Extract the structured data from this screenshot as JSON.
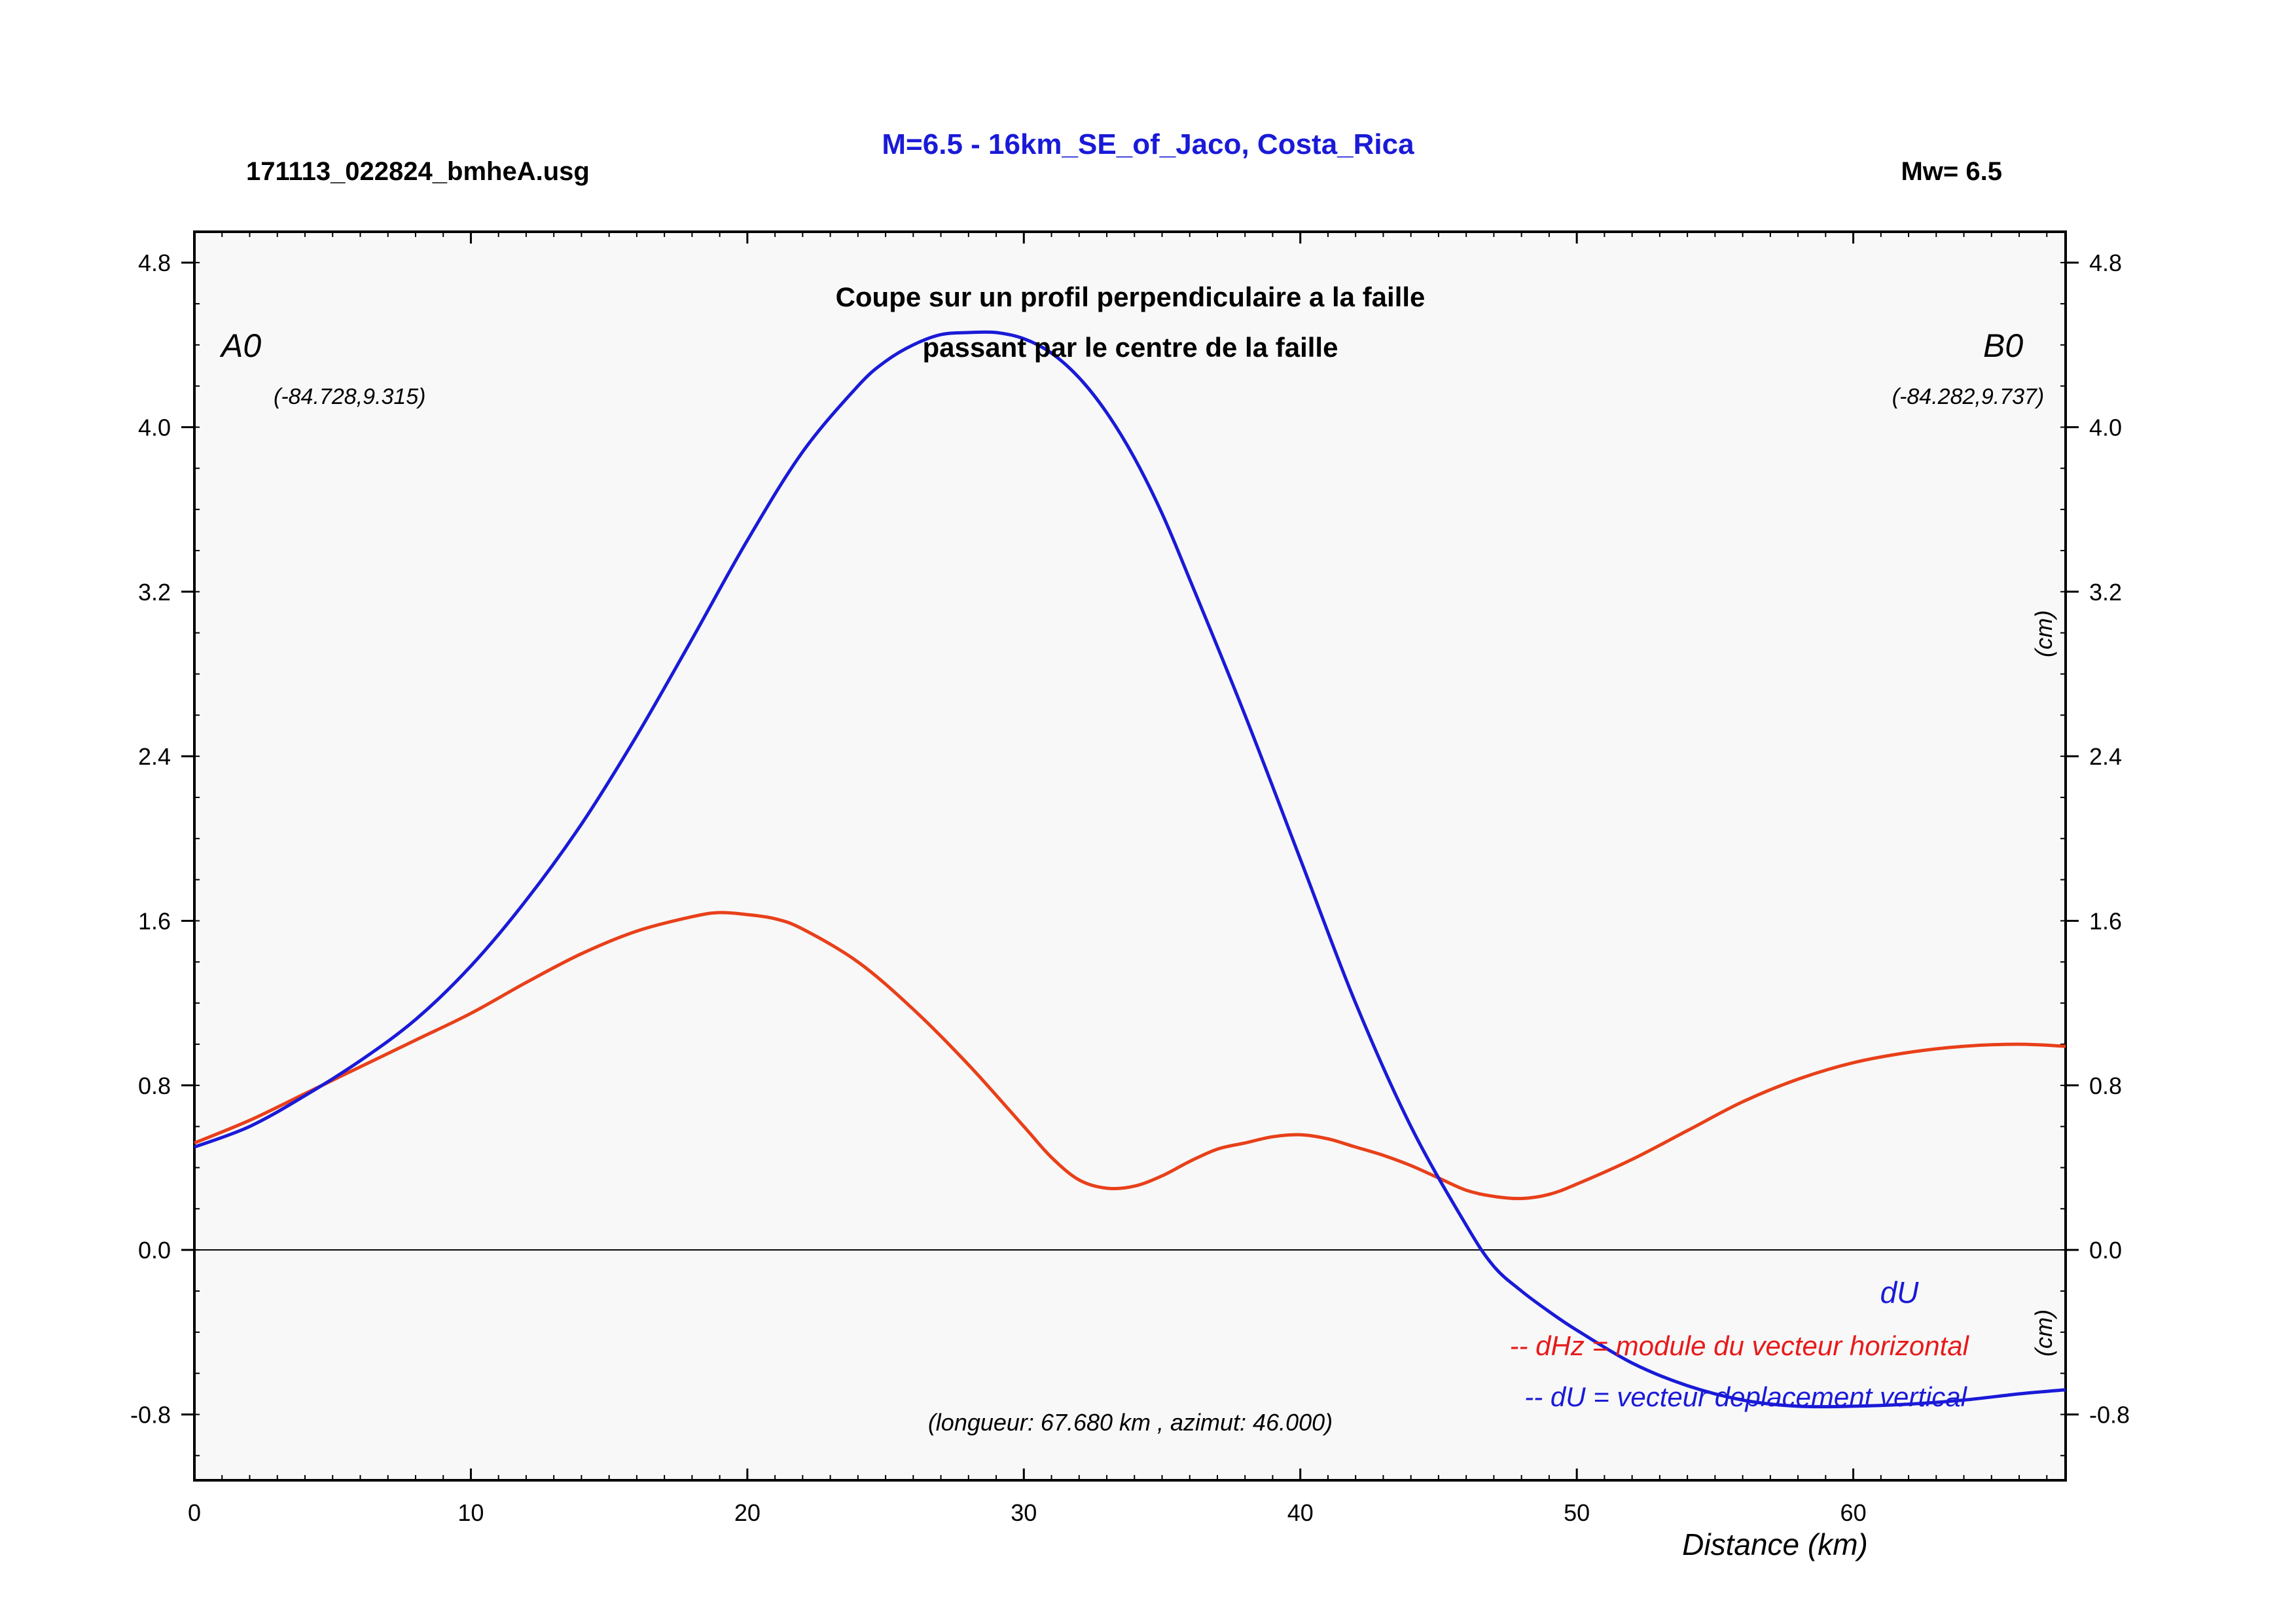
{
  "header": {
    "title": "M=6.5 - 16km_SE_of_Jaco, Costa_Rica",
    "file": "171113_022824_bmheA.usg",
    "mw": "Mw= 6.5"
  },
  "colors": {
    "dU": "#1a1ad8",
    "dHz": "#e8401a",
    "legend_dHz": "#e81a1a",
    "title": "#1a1ad8",
    "plot_bg": "#f8f8f8"
  },
  "chart_data": {
    "type": "line",
    "subtitle_lines": [
      "Coupe sur un profil perpendiculaire a la faille",
      "passant par le centre de la faille"
    ],
    "xlabel": "Distance (km)",
    "ylabel_right": "(cm)",
    "ylabel_right_lower": "(cm)",
    "xlim": [
      0,
      67.68
    ],
    "ylim": [
      -1.12,
      4.95
    ],
    "xticks": [
      0,
      10,
      20,
      30,
      40,
      50,
      60
    ],
    "yticks": [
      -0.8,
      0.0,
      0.8,
      1.6,
      2.4,
      3.2,
      4.0,
      4.8
    ],
    "grid": false,
    "zero_line": true,
    "endpoints": {
      "start_label": "A0",
      "start_coords": "(-84.728,9.315)",
      "end_label": "B0",
      "end_coords": "(-84.282,9.737)"
    },
    "profile_info": "(longueur: 67.680 km , azimut: 46.000)",
    "curve_label": "dU",
    "legend": [
      "-- dHz = module du vecteur horizontal",
      "-- dU =  vecteur deplacement vertical"
    ],
    "series": [
      {
        "key": "dU",
        "x": [
          0,
          2,
          4,
          6,
          8,
          10,
          12,
          14,
          16,
          18,
          20,
          22,
          24,
          25,
          26,
          27,
          28,
          29,
          30,
          31,
          32,
          33,
          34,
          35,
          36,
          38,
          40,
          42,
          44,
          46,
          47,
          48,
          49,
          50,
          52,
          54,
          56,
          58,
          60,
          62,
          64,
          66,
          67.68
        ],
        "y": [
          0.5,
          0.6,
          0.75,
          0.92,
          1.12,
          1.38,
          1.7,
          2.07,
          2.5,
          2.97,
          3.45,
          3.88,
          4.2,
          4.32,
          4.4,
          4.45,
          4.46,
          4.46,
          4.43,
          4.36,
          4.24,
          4.07,
          3.85,
          3.58,
          3.26,
          2.6,
          1.9,
          1.2,
          0.6,
          0.12,
          -0.08,
          -0.2,
          -0.3,
          -0.39,
          -0.55,
          -0.66,
          -0.73,
          -0.76,
          -0.76,
          -0.75,
          -0.73,
          -0.7,
          -0.68
        ]
      },
      {
        "key": "dHz",
        "x": [
          0,
          2,
          4,
          6,
          8,
          10,
          12,
          14,
          16,
          18,
          19,
          20,
          21,
          22,
          24,
          26,
          28,
          30,
          31,
          32,
          33,
          34,
          35,
          36,
          37,
          38,
          39,
          40,
          41,
          42,
          43,
          44,
          45,
          46,
          47,
          48,
          49,
          50,
          52,
          54,
          56,
          58,
          60,
          62,
          64,
          66,
          67.68
        ],
        "y": [
          0.52,
          0.63,
          0.76,
          0.89,
          1.02,
          1.15,
          1.3,
          1.44,
          1.55,
          1.62,
          1.64,
          1.63,
          1.61,
          1.56,
          1.4,
          1.17,
          0.9,
          0.6,
          0.45,
          0.34,
          0.3,
          0.31,
          0.36,
          0.43,
          0.49,
          0.52,
          0.55,
          0.56,
          0.54,
          0.5,
          0.46,
          0.41,
          0.35,
          0.29,
          0.26,
          0.25,
          0.27,
          0.32,
          0.44,
          0.58,
          0.72,
          0.83,
          0.91,
          0.96,
          0.99,
          1.0,
          0.99
        ]
      }
    ]
  }
}
